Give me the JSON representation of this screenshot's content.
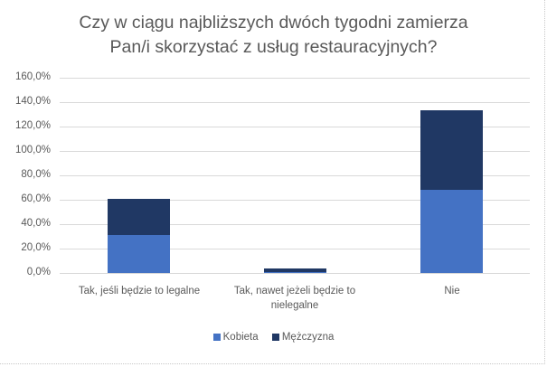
{
  "chart_data": {
    "type": "bar",
    "stacked": true,
    "title": "Czy w ciągu najbliższych dwóch tygodni zamierza Pan/i skorzystać z usług restauracyjnych?",
    "title_lines": [
      "Czy w ciągu najbliższych dwóch tygodni zamierza",
      "Pan/i skorzystać z usług restauracyjnych?"
    ],
    "categories": [
      "Tak, jeśli będzie to legalne",
      "Tak, nawet jeżeli będzie to nielegalne",
      "Nie"
    ],
    "category_lines": [
      [
        "Tak, jeśli będzie to legalne"
      ],
      [
        "Tak, nawet jeżeli będzie to",
        "nielegalne"
      ],
      [
        "Nie"
      ]
    ],
    "series": [
      {
        "name": "Kobieta",
        "color": "#4472C4",
        "values": [
          31.0,
          0.5,
          68.0
        ]
      },
      {
        "name": "Mężczyzna",
        "color": "#203864",
        "values": [
          30.0,
          3.5,
          65.5
        ]
      }
    ],
    "xlabel": "",
    "ylabel": "",
    "ylim": [
      0,
      160
    ],
    "yticks": [
      "0,0%",
      "20,0%",
      "40,0%",
      "60,0%",
      "80,0%",
      "100,0%",
      "120,0%",
      "140,0%",
      "160,0%"
    ],
    "grid": true,
    "legend_position": "bottom"
  }
}
